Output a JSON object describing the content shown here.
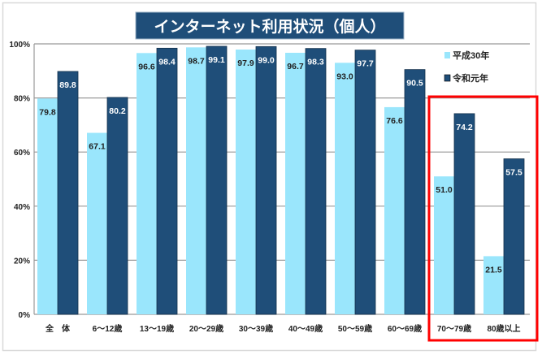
{
  "chart_data": {
    "type": "bar",
    "title": "インターネット利用状況（個人）",
    "categories": [
      "全　体",
      "6～12歳",
      "13～19歳",
      "20～29歳",
      "30～39歳",
      "40～49歳",
      "50～59歳",
      "60～69歳",
      "70～79歳",
      "80歳以上"
    ],
    "series": [
      {
        "name": "平成30年",
        "color": "#9ae6fc",
        "values": [
          79.8,
          67.1,
          96.6,
          98.7,
          97.9,
          96.7,
          93.0,
          76.6,
          51.0,
          21.5
        ]
      },
      {
        "name": "令和元年",
        "color": "#1f4e79",
        "values": [
          89.8,
          80.2,
          98.4,
          99.1,
          99.0,
          98.3,
          97.7,
          90.5,
          74.2,
          57.5
        ]
      }
    ],
    "y_ticks": [
      "0%",
      "20%",
      "40%",
      "60%",
      "80%",
      "100%"
    ],
    "ylim": [
      0,
      100
    ],
    "xlabel": "",
    "ylabel": "",
    "grid": true,
    "legend_position": "top-right",
    "highlight": {
      "categories": [
        "70～79歳",
        "80歳以上"
      ],
      "color": "#ff0000"
    }
  }
}
